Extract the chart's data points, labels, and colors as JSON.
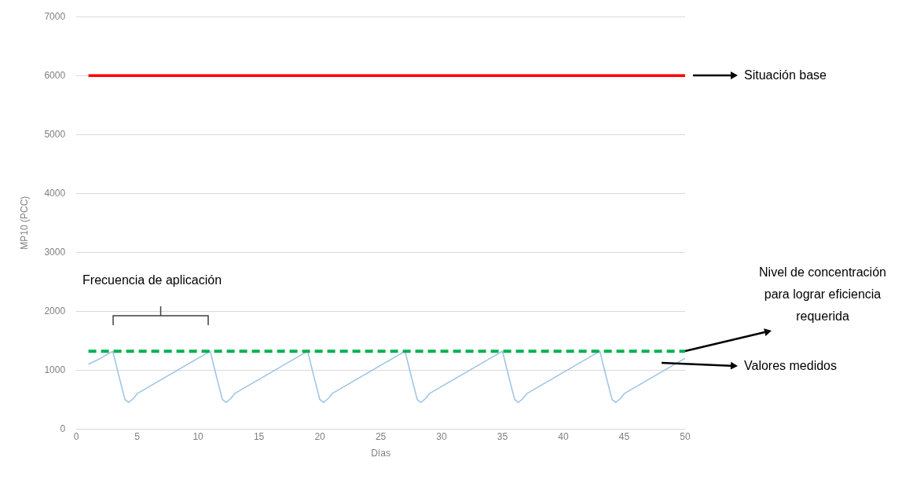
{
  "chart_data": {
    "type": "line",
    "xlabel": "Días",
    "ylabel": "MP10 (PCC)",
    "xlim": [
      0,
      50
    ],
    "xticks": [
      0,
      5,
      10,
      15,
      20,
      25,
      30,
      35,
      40,
      45,
      50
    ],
    "ylim": [
      0,
      7000
    ],
    "yticks": [
      0,
      1000,
      2000,
      3000,
      4000,
      5000,
      6000,
      7000
    ],
    "grid": "y",
    "legend": false,
    "marker": "none",
    "series": [
      {
        "name": "Situación base",
        "color": "#ff0000",
        "x": [
          1,
          50
        ],
        "values": [
          6000,
          6000
        ]
      },
      {
        "name": "Nivel de concentración para lograr eficiencia requerida",
        "color": "#00b050",
        "line_style": "dashed",
        "x": [
          1,
          50
        ],
        "values": [
          1320,
          1320
        ]
      },
      {
        "name": "Valores medidos",
        "color": "#9dc3e6",
        "x": [
          1,
          2,
          3,
          3.5,
          4,
          4.3,
          4.7,
          5,
          11,
          11.5,
          12,
          12.3,
          12.7,
          13,
          19,
          19.5,
          20,
          20.3,
          20.7,
          21,
          27,
          27.5,
          28,
          28.3,
          28.7,
          29,
          35,
          35.5,
          36,
          36.3,
          36.7,
          37,
          43,
          43.5,
          44,
          44.3,
          44.7,
          45,
          50
        ],
        "values": [
          1100,
          1200,
          1320,
          900,
          500,
          450,
          520,
          600,
          1320,
          900,
          500,
          450,
          520,
          600,
          1320,
          900,
          500,
          450,
          520,
          600,
          1320,
          900,
          500,
          450,
          520,
          600,
          1320,
          900,
          500,
          450,
          520,
          600,
          1320,
          900,
          500,
          450,
          520,
          600,
          1200
        ]
      }
    ],
    "annotations": [
      "Frecuencia de aplicación"
    ]
  }
}
